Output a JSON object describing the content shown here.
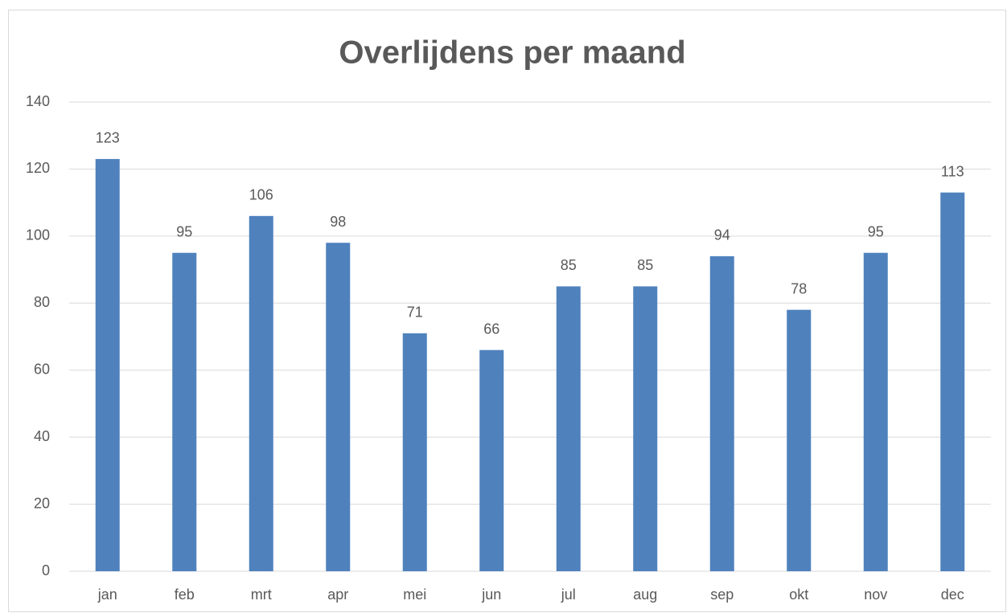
{
  "chart_data": {
    "type": "bar",
    "title": "Overlijdens per maand",
    "categories": [
      "jan",
      "feb",
      "mrt",
      "apr",
      "mei",
      "jun",
      "jul",
      "aug",
      "sep",
      "okt",
      "nov",
      "dec"
    ],
    "values": [
      123,
      95,
      106,
      98,
      71,
      66,
      85,
      85,
      94,
      78,
      95,
      113
    ],
    "color": "#4f81bd",
    "ylim": [
      0,
      140
    ],
    "yticks": [
      0,
      20,
      40,
      60,
      80,
      100,
      120,
      140
    ],
    "grid": true
  }
}
